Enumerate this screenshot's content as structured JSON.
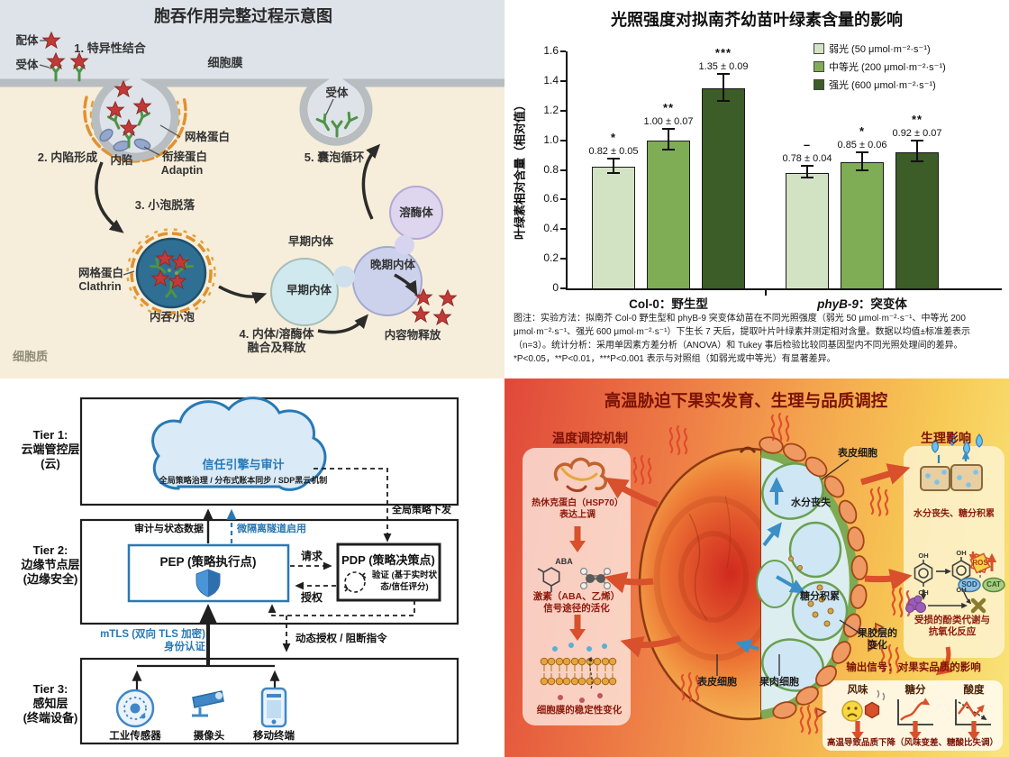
{
  "panels": {
    "endocytosis": {
      "title": "胞吞作用完整过程示意图",
      "labels": {
        "ligand": "配体",
        "receptor": "受体",
        "step1": "1. 特异性结合",
        "membrane": "细胞膜",
        "receptor2": "受体",
        "clathrin_top": "网格蛋白",
        "step2": "2. 内陷形成",
        "pit": "内陷",
        "adaptin_cn": "衔接蛋白",
        "adaptin_en": "Adaptin",
        "step5": "5. 囊泡循环",
        "lysosome": "溶酶体",
        "step3": "3. 小泡脱落",
        "clathrin_cn": "网格蛋白",
        "clathrin_en": "Clathrin",
        "early_endosome_label": "早期内体",
        "early_endosome": "早期内体",
        "late_endosome": "晚期内体",
        "vesicle": "内吞小泡",
        "step4_line1": "4. 内体/溶酶体",
        "step4_line2": "融合及释放",
        "release": "内容物释放",
        "cytoplasm": "细胞质"
      }
    },
    "architecture": {
      "tier1": {
        "l1": "Tier 1:",
        "l2": "云端管控层",
        "l3": "(云)"
      },
      "cloud_title": "信任引擎与审计",
      "cloud_sub": "全局策略治理 / 分布式账本同步 / SDP黑云机制",
      "policy_push": "全局策略下发",
      "tier2": {
        "l1": "Tier 2:",
        "l2": "边缘节点层",
        "l3": "(边缘安全)"
      },
      "audit": "审计与状态数据",
      "microseg": "微隔离隧道启用",
      "pep": "PEP (策略执行点)",
      "request": "请求",
      "authz": "授权",
      "pdp": "PDP (策略决策点)",
      "verify_l1": "验证 (基于实时状",
      "verify_l2": "态/信任评分)",
      "mtls_l1": "mTLS (双向 TLS 加密)",
      "mtls_l2": "身份认证",
      "dynamic": "动态授权 / 阻断指令",
      "tier3": {
        "l1": "Tier 3:",
        "l2": "感知层",
        "l3": "(终端设备)"
      },
      "devices": [
        "工业传感器",
        "摄像头",
        "移动终端"
      ],
      "accent_blue": "#2879b5"
    },
    "fruit": {
      "title": "高温胁迫下果实发育、生理与品质调控",
      "left_header": "温度调控机制",
      "right_header": "生理影响",
      "hsp_l1": "热休克蛋白（HSP70）",
      "hsp_l2": "表达上调",
      "aba": "ABA",
      "hormone_l1": "激素（ABA、乙烯）",
      "hormone_l2": "信号途径的活化",
      "membrane_change": "细胞膜的稳定性变化",
      "epidermis_top": "表皮细胞",
      "water_loss": "水分丧失",
      "sugar_accum": "糖分积累",
      "pectin_l1": "果胶层的",
      "pectin_l2": "变化",
      "epidermis_bottom": "表皮细胞",
      "flesh": "果肉细胞",
      "water_sugar": "水分丧失、糖分积累",
      "oh": "OH",
      "ros": "ROS",
      "sod": "SOD",
      "cat": "CAT",
      "phenol_l1": "受损的酚类代谢与",
      "phenol_l2": "抗氧化反应",
      "output_header": "输出信号：对果实品质的影响",
      "quality_items": [
        "风味",
        "糖分",
        "酸度"
      ],
      "bottom_note": "高温导致品质下降（风味变差、糖酸比失调）",
      "accent_red": "#d8502c"
    }
  },
  "chart_data": {
    "type": "bar",
    "title": "光照强度对拟南芥幼苗叶绿素含量的影响",
    "ylabel": "叶绿素相对含量（相对值）",
    "xlabel": "",
    "ylim": [
      0,
      1.6
    ],
    "ytick_labels": [
      "0",
      "0.2",
      "0.4",
      "0.6",
      "0.8",
      "1.0",
      "1.2",
      "1.4",
      "1.6"
    ],
    "grid": false,
    "legend_position": "top-right",
    "categories": [
      "Col-0：野生型",
      "phyB-9：突变体"
    ],
    "categories_rich": [
      {
        "name": "Col-0",
        "suffix": "：野生型",
        "italic": false
      },
      {
        "name": "phyB-9",
        "suffix": "：突变体",
        "italic": true
      }
    ],
    "series": [
      {
        "name": "弱光 (50 μmol·m⁻²·s⁻¹)",
        "color": "#d2e3c4",
        "values": [
          0.82,
          0.78
        ],
        "errors": [
          0.05,
          0.04
        ],
        "sig": [
          "*",
          "–"
        ]
      },
      {
        "name": "中等光 (200 μmol·m⁻²·s⁻¹)",
        "color": "#7fad55",
        "values": [
          1.0,
          0.85
        ],
        "errors": [
          0.07,
          0.06
        ],
        "sig": [
          "**",
          "*"
        ]
      },
      {
        "name": "强光 (600 μmol·m⁻²·s⁻¹)",
        "color": "#3c5c28",
        "values": [
          1.35,
          0.92
        ],
        "errors": [
          0.09,
          0.07
        ],
        "sig": [
          "***",
          "**"
        ]
      }
    ],
    "value_labels": [
      [
        "0.82 ± 0.05",
        "1.00 ± 0.07",
        "1.35 ± 0.09"
      ],
      [
        "0.78 ± 0.04",
        "0.85 ± 0.06",
        "0.92 ± 0.07"
      ]
    ],
    "caption": "图注：实验方法：拟南芥 Col-0 野生型和 phyB-9 突变体幼苗在不同光照强度（弱光 50 μmol·m⁻²·s⁻¹、中等光 200 μmol·m⁻²·s⁻¹、强光 600 μmol·m⁻²·s⁻¹）下生长 7 天后，提取叶片叶绿素并测定相对含量。数据以均值±标准差表示（n=3）。统计分析：采用单因素方差分析（ANOVA）和 Tukey 事后检验比较同基因型内不同光照处理间的差异。*P<0.05，**P<0.01，***P<0.001 表示与对照组（如弱光或中等光）有显著差异。"
  }
}
